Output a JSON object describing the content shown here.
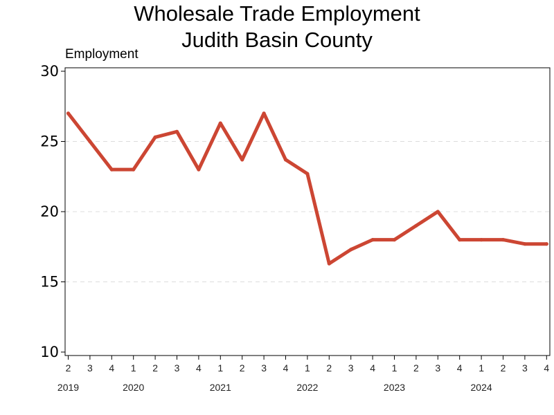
{
  "chart_data": {
    "type": "line",
    "title": "Wholesale Trade Employment",
    "subtitle": "Judith Basin County",
    "ylabel": "Employment",
    "xlabel": "",
    "ylim": [
      10,
      30
    ],
    "yticks": [
      10,
      15,
      20,
      25,
      30
    ],
    "grid": true,
    "color": "#cc4633",
    "x_quarters": [
      "2",
      "3",
      "4",
      "1",
      "2",
      "3",
      "4",
      "1",
      "2",
      "3",
      "4",
      "1",
      "2",
      "3",
      "4",
      "1",
      "2",
      "3",
      "4",
      "1",
      "2",
      "3",
      "4"
    ],
    "year_labels": [
      {
        "label": "2019",
        "at_index": 0
      },
      {
        "label": "2020",
        "at_index": 3
      },
      {
        "label": "2021",
        "at_index": 7
      },
      {
        "label": "2022",
        "at_index": 11
      },
      {
        "label": "2023",
        "at_index": 15
      },
      {
        "label": "2024",
        "at_index": 19
      }
    ],
    "series": [
      {
        "values": [
          27,
          25,
          23,
          23,
          25.3,
          25.7,
          23,
          26.3,
          23.7,
          27,
          23.7,
          22.7,
          16.3,
          17.3,
          18,
          18,
          19,
          20,
          18,
          18,
          18,
          17.7,
          17.7
        ]
      }
    ]
  }
}
